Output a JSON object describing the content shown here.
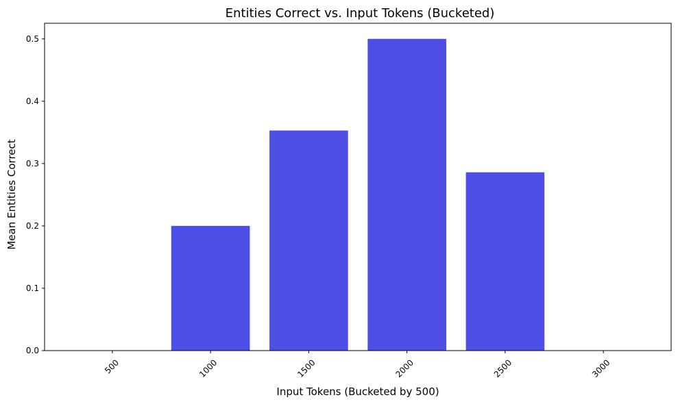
{
  "chart_data": {
    "type": "bar",
    "title": "Entities Correct vs. Input Tokens (Bucketed)",
    "xlabel": "Input Tokens (Bucketed by 500)",
    "ylabel": "Mean Entities Correct",
    "categories": [
      "500",
      "1000",
      "1500",
      "2000",
      "2500",
      "3000"
    ],
    "values": [
      0,
      0.2,
      0.353,
      0.5,
      0.286,
      0
    ],
    "ylim": [
      0,
      0.525
    ],
    "yticks": [
      "0.0",
      "0.1",
      "0.2",
      "0.3",
      "0.4",
      "0.5"
    ],
    "ytick_values": [
      0,
      0.1,
      0.2,
      0.3,
      0.4,
      0.5
    ],
    "xtick_rotation_deg": 45,
    "bar_color": "#4c4ee6",
    "grid": false,
    "legend": "none"
  }
}
